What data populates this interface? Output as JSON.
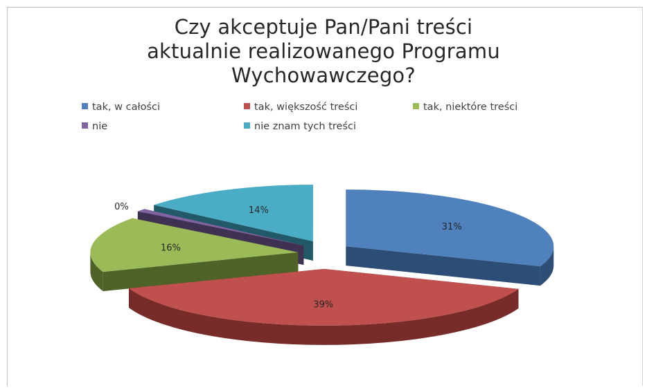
{
  "chart_data": {
    "type": "pie",
    "title_lines": [
      "Czy akceptuje Pan/Pani treści",
      "aktualnie realizowanego Programu",
      "Wychowawczego?"
    ],
    "categories": [
      "tak, w całości",
      "tak, większość treści",
      "tak, niektóre treści",
      "nie",
      "nie znam tych treści"
    ],
    "values": [
      31,
      39,
      16,
      0,
      14
    ],
    "data_labels": [
      "31%",
      "39%",
      "16%",
      "0%",
      "14%"
    ],
    "colors": [
      "#4f81bd",
      "#c0504d",
      "#9bbb59",
      "#8064a2",
      "#4bacc6"
    ],
    "side_colors": [
      "#2c4d75",
      "#772c2a",
      "#4f6228",
      "#3f3151",
      "#215968"
    ],
    "exploded": true,
    "three_d": true,
    "legend_position": "top"
  }
}
